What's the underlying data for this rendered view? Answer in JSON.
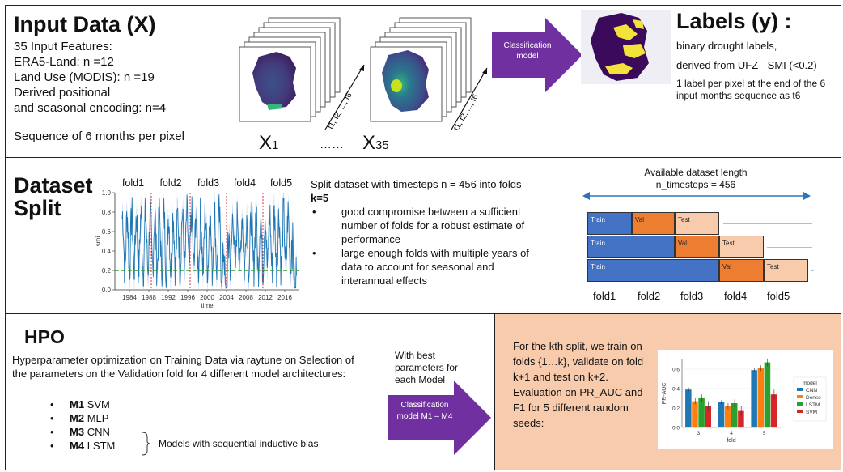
{
  "input": {
    "title": "Input Data (X)",
    "lines": [
      "35 Input Features:",
      "ERA5-Land: n =12",
      "Land Use (MODIS): n =19",
      "Derived positional",
      "and seasonal encoding: n=4"
    ],
    "sequence": "Sequence of 6 months per pixel",
    "x1_main": "X",
    "x1_sub": "1",
    "dots": "……",
    "x35_main": "X",
    "x35_sub": "35",
    "time_label": "t1, t2, ..., t6"
  },
  "classification_top": "Classification model",
  "labels": {
    "title": "Labels (y) :",
    "line1": "binary drought labels,",
    "line2": "derived from UFZ - SMI (<0.2)",
    "line3": "1 label per pixel at the end of the 6 input months sequence as t6"
  },
  "split": {
    "title1": "Dataset",
    "title2": "Split",
    "folds": [
      "fold1",
      "fold2",
      "fold3",
      "fold4",
      "fold5"
    ],
    "ylabel": "smi",
    "xlabel": "time",
    "yticks": [
      "1.0",
      "0.8",
      "0.6",
      "0.4",
      "0.2",
      "0.0"
    ],
    "xticks": [
      "1984",
      "1988",
      "1992",
      "1996",
      "2000",
      "2004",
      "2008",
      "2012",
      "2016"
    ],
    "text_intro": "Split dataset with timesteps n = 456 into folds",
    "k_label": "k=5",
    "bullets": [
      "good compromise between a sufficient number of folds for a robust estimate of performance",
      "large enough folds with multiple years of data to account for seasonal and interannual effects"
    ],
    "avail1": "Available dataset length",
    "avail2": "n_timesteps = 456",
    "bar_rows": [
      {
        "train": "Train",
        "val": "Val",
        "test": "Test"
      },
      {
        "train": "Train",
        "val": "Val",
        "test": "Test"
      },
      {
        "train": "Train",
        "val": "Val",
        "test": "Test"
      }
    ],
    "fold_labels": [
      "fold1",
      "fold2",
      "fold3",
      "fold4",
      "fold5"
    ]
  },
  "hpo": {
    "title": "HPO",
    "desc": "Hyperparameter optimization on Training Data via raytune on Selection of the parameters on the Validation fold for 4 different model architectures:",
    "models": [
      {
        "bold": "M1",
        "name": "SVM"
      },
      {
        "bold": "M2",
        "name": "MLP"
      },
      {
        "bold": "M3",
        "name": "CNN"
      },
      {
        "bold": "M4",
        "name": "LSTM"
      }
    ],
    "bias_note": "Models with sequential inductive bias",
    "best_params": "With best parameters for each Model",
    "classification_bottom": "Classification model M1 – M4"
  },
  "eval": {
    "text": "For the kth split, we train on folds {1…k}, validate on fold k+1 and test on k+2. Evaluation on PR_AUC and F1 for 5 different random seeds:"
  },
  "colors": {
    "purple": "#7030a0",
    "train_blue": "#4472c4",
    "val_orange": "#ed7d31",
    "test_peach": "#f8cbad",
    "eval_bg": "#f8cbad",
    "cnn": "#1f77b4",
    "dense": "#ff7f0e",
    "lstm": "#2ca02c",
    "svm": "#d62728"
  },
  "chart_data": [
    {
      "type": "bar",
      "title": "",
      "xlabel": "fold",
      "ylabel": "PR-AUC",
      "categories": [
        "3",
        "4",
        "5"
      ],
      "ylim": [
        0,
        0.7
      ],
      "yticks": [
        "0.0",
        "0.2",
        "0.4",
        "0.6"
      ],
      "legend_title": "model",
      "legend_position": "right",
      "series": [
        {
          "name": "CNN",
          "values": [
            0.39,
            0.26,
            0.59
          ]
        },
        {
          "name": "Dense",
          "values": [
            0.27,
            0.22,
            0.61
          ]
        },
        {
          "name": "LSTM",
          "values": [
            0.3,
            0.25,
            0.67
          ]
        },
        {
          "name": "SVM",
          "values": [
            0.22,
            0.17,
            0.34
          ]
        }
      ]
    },
    {
      "type": "line",
      "title": "",
      "xlabel": "time",
      "ylabel": "smi",
      "xlim": [
        1981,
        2019
      ],
      "ylim": [
        0.0,
        1.0
      ],
      "grid": false,
      "threshold": 0.2,
      "fold_boundaries": [
        1988.5,
        1996.5,
        2004.0,
        2011.5
      ]
    }
  ]
}
